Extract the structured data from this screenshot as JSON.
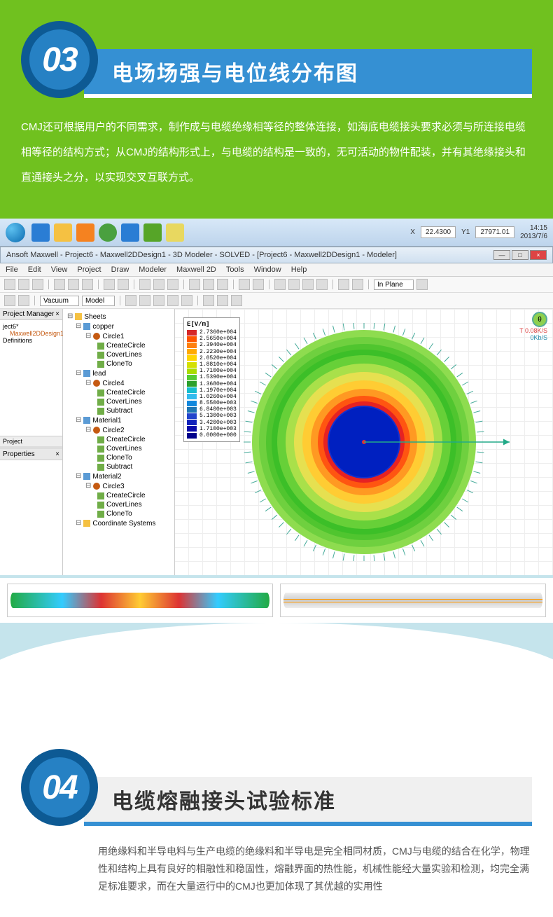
{
  "section3": {
    "number": "03",
    "title": "电场场强与电位线分布图",
    "description": "CMJ还可根据用户的不同需求，制作成与电缆绝缘相等径的整体连接，如海底电缆接头要求必须与所连接电缆相等径的结构方式；从CMJ的结构形式上，与电缆的结构是一致的，无可活动的物件配装，并有其绝缘接头和直通接头之分，以实现交叉互联方式。"
  },
  "taskbar": {
    "coords_x_label": "X",
    "coords_x": "22.4300",
    "coords_y_label": "Y1",
    "coords_y": "27971.01",
    "time": "14:15",
    "date": "2013/7/6"
  },
  "app": {
    "title": "Ansoft Maxwell - Project6 - Maxwell2DDesign1 - 3D Modeler - SOLVED - [Project6 - Maxwell2DDesign1 - Modeler]",
    "menu": [
      "File",
      "Edit",
      "View",
      "Project",
      "Draw",
      "Modeler",
      "Maxwell 2D",
      "Tools",
      "Window",
      "Help"
    ],
    "toolbar_select1": "Vacuum",
    "toolbar_select2": "Model",
    "toolbar_select3": "In Plane"
  },
  "panels": {
    "project_manager": "Project Manager",
    "project_item": "ject6*",
    "design_item": "Maxwell2DDesign1",
    "definitions": "Definitions",
    "project_tab": "Project",
    "properties": "Properties"
  },
  "tree": {
    "root": "Sheets",
    "items": [
      {
        "l": 1,
        "icon": "sheet",
        "label": "copper"
      },
      {
        "l": 2,
        "icon": "circle",
        "label": "Circle1"
      },
      {
        "l": 3,
        "icon": "op",
        "label": "CreateCircle"
      },
      {
        "l": 3,
        "icon": "op",
        "label": "CoverLines"
      },
      {
        "l": 3,
        "icon": "op",
        "label": "CloneTo"
      },
      {
        "l": 1,
        "icon": "sheet",
        "label": "lead"
      },
      {
        "l": 2,
        "icon": "circle",
        "label": "Circle4"
      },
      {
        "l": 3,
        "icon": "op",
        "label": "CreateCircle"
      },
      {
        "l": 3,
        "icon": "op",
        "label": "CoverLines"
      },
      {
        "l": 3,
        "icon": "op",
        "label": "Subtract"
      },
      {
        "l": 1,
        "icon": "sheet",
        "label": "Material1"
      },
      {
        "l": 2,
        "icon": "circle",
        "label": "Circle2"
      },
      {
        "l": 3,
        "icon": "op",
        "label": "CreateCircle"
      },
      {
        "l": 3,
        "icon": "op",
        "label": "CoverLines"
      },
      {
        "l": 3,
        "icon": "op",
        "label": "CloneTo"
      },
      {
        "l": 3,
        "icon": "op",
        "label": "Subtract"
      },
      {
        "l": 1,
        "icon": "sheet",
        "label": "Material2"
      },
      {
        "l": 2,
        "icon": "circle",
        "label": "Circle3"
      },
      {
        "l": 3,
        "icon": "op",
        "label": "CreateCircle"
      },
      {
        "l": 3,
        "icon": "op",
        "label": "CoverLines"
      },
      {
        "l": 3,
        "icon": "op",
        "label": "CloneTo"
      },
      {
        "l": 1,
        "icon": "folder",
        "label": "Coordinate Systems"
      }
    ]
  },
  "legend": {
    "title": "E[V/m]",
    "entries": [
      {
        "c": "#d62728",
        "v": "2.7360e+004"
      },
      {
        "c": "#ff5500",
        "v": "2.5650e+004"
      },
      {
        "c": "#ff7f0e",
        "v": "2.3940e+004"
      },
      {
        "c": "#ffaa00",
        "v": "2.2230e+004"
      },
      {
        "c": "#ffd500",
        "v": "2.0520e+004"
      },
      {
        "c": "#d4e000",
        "v": "1.8810e+004"
      },
      {
        "c": "#aadd00",
        "v": "1.7100e+004"
      },
      {
        "c": "#55cc33",
        "v": "1.5390e+004"
      },
      {
        "c": "#2ca02c",
        "v": "1.3680e+004"
      },
      {
        "c": "#17becf",
        "v": "1.1970e+004"
      },
      {
        "c": "#33bbee",
        "v": "1.0260e+004"
      },
      {
        "c": "#1188dd",
        "v": "8.5500e+003"
      },
      {
        "c": "#1f77b4",
        "v": "6.8400e+003"
      },
      {
        "c": "#2244cc",
        "v": "5.1300e+003"
      },
      {
        "c": "#1122bb",
        "v": "3.4200e+003"
      },
      {
        "c": "#0a0aaa",
        "v": "1.7100e+003"
      },
      {
        "c": "#00008b",
        "v": "0.0000e+000"
      }
    ]
  },
  "status_corner": {
    "temp": "T 0.08K/S",
    "rate": "0Kb/S"
  },
  "contour": {
    "rings": [
      {
        "r": 160,
        "c": "#8edc4f"
      },
      {
        "r": 150,
        "c": "#6fd03f"
      },
      {
        "r": 140,
        "c": "#50c52f"
      },
      {
        "r": 132,
        "c": "#3cbf28"
      },
      {
        "r": 124,
        "c": "#67d038"
      },
      {
        "r": 112,
        "c": "#a9e04a"
      },
      {
        "r": 100,
        "c": "#e6e050"
      },
      {
        "r": 88,
        "c": "#ffcc33"
      },
      {
        "r": 76,
        "c": "#ff9922"
      },
      {
        "r": 66,
        "c": "#ff5511"
      },
      {
        "r": 58,
        "c": "#e62222"
      },
      {
        "r": 52,
        "c": "#1030d0"
      },
      {
        "r": 50,
        "c": "#0020c0"
      }
    ]
  },
  "section4": {
    "number": "04",
    "title": "电缆熔融接头试验标准",
    "description": "用绝缘料和半导电料与生产电缆的绝缘料和半导电是完全相同材质，CMJ与电缆的结合在化学，物理性和结构上具有良好的相融性和稳固性，熔融界面的热性能，机械性能经大量实验和检测，均完全满足标准要求，而在大量运行中的CMJ也更加体现了其优越的实用性"
  }
}
